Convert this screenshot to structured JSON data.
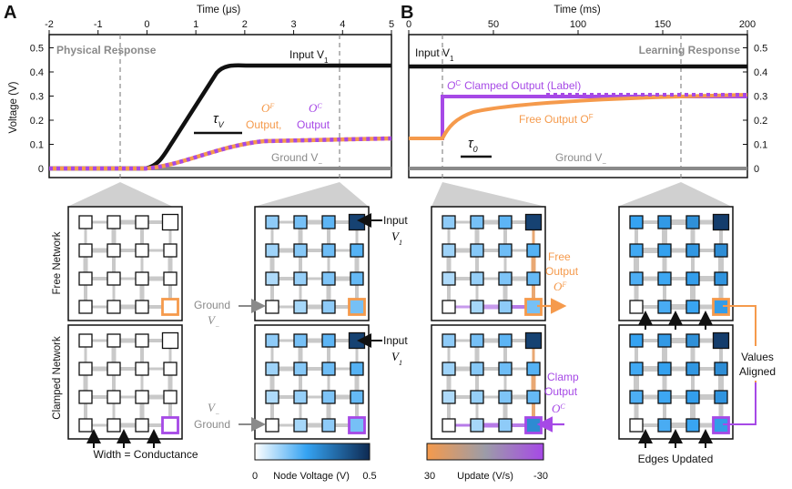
{
  "panel_a": {
    "letter": "A",
    "top_axis_label": "Time (μs)",
    "top_ticks": [
      "-2",
      "-1",
      "0",
      "1",
      "2",
      "3",
      "4",
      "5"
    ],
    "y_axis_label": "Voltage (V)",
    "y_ticks": [
      "0",
      "0.1",
      "0.2",
      "0.3",
      "0.4",
      "0.5"
    ],
    "title": "Physical Response",
    "input_label": "Input V",
    "input_sub": "1",
    "of_label": "O",
    "of_sup": "F",
    "oc_label": "O",
    "oc_sup": "C",
    "output_of": "Output,",
    "output_oc": "Output",
    "tau": "τ",
    "tau_sub": "V",
    "ground_label": "Ground V",
    "ground_sub": "−",
    "row_free": "Free Network",
    "row_clamped": "Clamped Network",
    "input_node_label": "Input",
    "input_node_v": "V",
    "input_node_sub": "1",
    "ground_node_label": "Ground",
    "ground_node_v": "V",
    "ground_node_sub": "−",
    "ground_node2_v": "V",
    "ground_node2_sub": "−",
    "ground_node2_label": "Ground",
    "width_note": "Width = Conductance",
    "colorbar_min": "0",
    "colorbar_label": "Node Voltage (V)",
    "colorbar_max": "0.5"
  },
  "panel_b": {
    "letter": "B",
    "top_axis_label": "Time (ms)",
    "top_ticks": [
      "0",
      "50",
      "100",
      "150",
      "200"
    ],
    "y_ticks": [
      "0",
      "0.1",
      "0.2",
      "0.3",
      "0.4",
      "0.5"
    ],
    "title": "Learning Response",
    "input_label": "Input V",
    "input_sub": "1",
    "clamped_label": "O",
    "clamped_sup": "C",
    "clamped_text": "Clamped Output (Label)",
    "free_text": "Free Output O",
    "free_sup": "F",
    "tau": "τ",
    "tau_sub": "0",
    "ground_label": "Ground V",
    "ground_sub": "−",
    "free_out_1": "Free",
    "free_out_2": "Output",
    "free_out_3": "O",
    "free_out_sup": "F",
    "clamp_out_1": "Clamp",
    "clamp_out_2": "Output",
    "clamp_out_3": "O",
    "clamp_out_sup": "C",
    "values_1": "Values",
    "values_2": "Aligned",
    "edges_note": "Edges Updated",
    "colorbar_min": "30",
    "colorbar_label": "Update (V/s)",
    "colorbar_max": "-30"
  },
  "colors": {
    "orange": "#F59A4C",
    "purple": "#A649E6",
    "ground": "#8A8A8A",
    "input": "#111111"
  }
}
